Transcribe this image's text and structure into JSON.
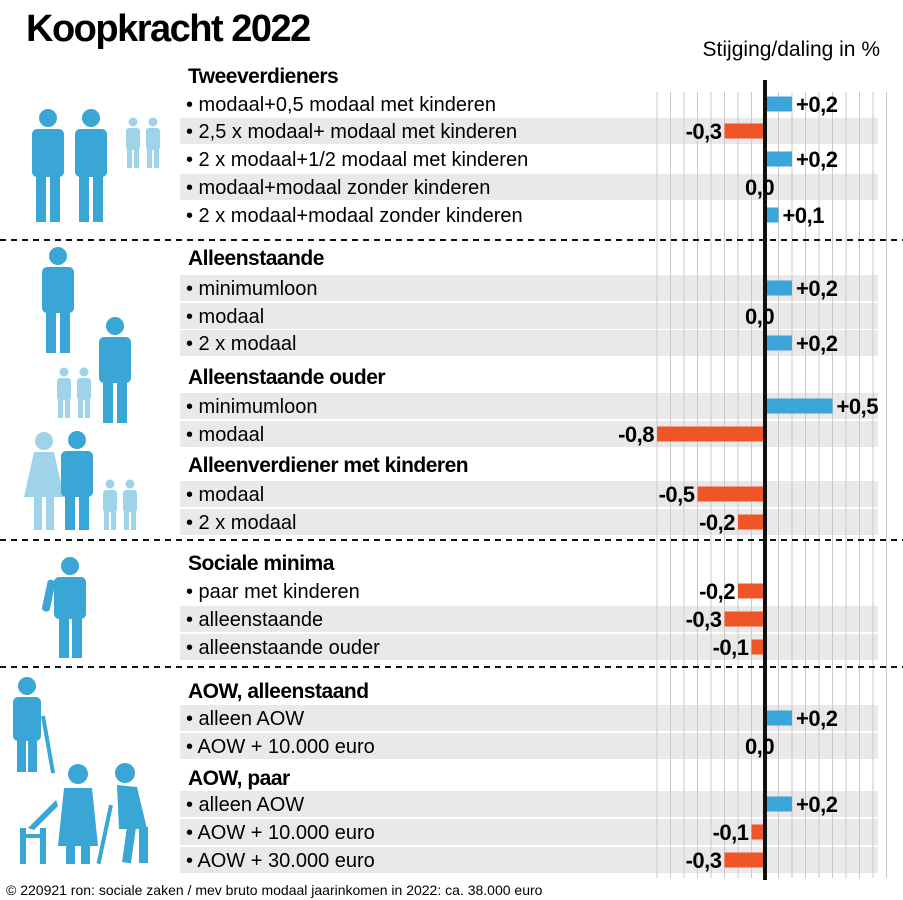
{
  "title": "Koopkracht 2022",
  "subtitle": "Stijging/daling in %",
  "footer": "© 220921 ron: sociale zaken / mev   bruto modaal jaarinkomen in 2022: ca. 38.000 euro",
  "colors": {
    "positive": "#3ba4d8",
    "negative": "#ef5527",
    "stripe": "#ebe8ea",
    "figure": "#39a6d6",
    "figure_light": "#9fd3ea",
    "grid": "#c8c8c8",
    "axis": "#111111"
  },
  "icons": [
    "couple-with-children-icon",
    "single-person-icon",
    "single-parent-icon",
    "social-minimum-person-icon",
    "elderly-person-with-cane-icon",
    "elderly-couple-icon"
  ],
  "chart_data": {
    "type": "bar",
    "orientation": "horizontal",
    "title": "Koopkracht 2022",
    "subtitle": "Stijging/daling in %",
    "xlim": [
      -0.8,
      0.9
    ],
    "groups": [
      {
        "name": "Tweeverdieners",
        "rows": [
          {
            "label": "• modaal+0,5 modaal met kinderen",
            "value": 0.2,
            "display": "+0,2"
          },
          {
            "label": "• 2,5 x modaal+ modaal met kinderen",
            "value": -0.3,
            "display": "-0,3"
          },
          {
            "label": "• 2 x modaal+1/2 modaal met kinderen",
            "value": 0.2,
            "display": "+0,2"
          },
          {
            "label": "• modaal+modaal zonder kinderen",
            "value": 0.0,
            "display": "0,0"
          },
          {
            "label": "• 2 x modaal+modaal zonder kinderen",
            "value": 0.1,
            "display": "+0,1"
          }
        ]
      },
      {
        "name": "Alleenstaande",
        "rows": [
          {
            "label": "• minimumloon",
            "value": 0.2,
            "display": "+0,2"
          },
          {
            "label": "• modaal",
            "value": 0.0,
            "display": "0,0"
          },
          {
            "label": "• 2 x modaal",
            "value": 0.2,
            "display": "+0,2"
          }
        ]
      },
      {
        "name": "Alleenstaande ouder",
        "rows": [
          {
            "label": "• minimumloon",
            "value": 0.5,
            "display": "+0,5"
          },
          {
            "label": "• modaal",
            "value": -0.8,
            "display": "-0,8"
          }
        ]
      },
      {
        "name": "Alleenverdiener met kinderen",
        "rows": [
          {
            "label": "• modaal",
            "value": -0.5,
            "display": "-0,5"
          },
          {
            "label": "• 2 x modaal",
            "value": -0.2,
            "display": "-0,2"
          }
        ]
      },
      {
        "name": "Sociale minima",
        "rows": [
          {
            "label": "• paar met kinderen",
            "value": -0.2,
            "display": "-0,2"
          },
          {
            "label": "• alleenstaande",
            "value": -0.3,
            "display": "-0,3"
          },
          {
            "label": "• alleenstaande ouder",
            "value": -0.1,
            "display": "-0,1"
          }
        ]
      },
      {
        "name": "AOW, alleenstaand",
        "rows": [
          {
            "label": "• alleen AOW",
            "value": 0.2,
            "display": "+0,2"
          },
          {
            "label": "• AOW + 10.000 euro",
            "value": 0.0,
            "display": "0,0"
          }
        ]
      },
      {
        "name": "AOW, paar",
        "rows": [
          {
            "label": "• alleen AOW",
            "value": 0.2,
            "display": "+0,2"
          },
          {
            "label": "• AOW + 10.000 euro",
            "value": -0.1,
            "display": "-0,1"
          },
          {
            "label": "• AOW + 30.000 euro",
            "value": -0.3,
            "display": "-0,3"
          }
        ]
      }
    ]
  }
}
